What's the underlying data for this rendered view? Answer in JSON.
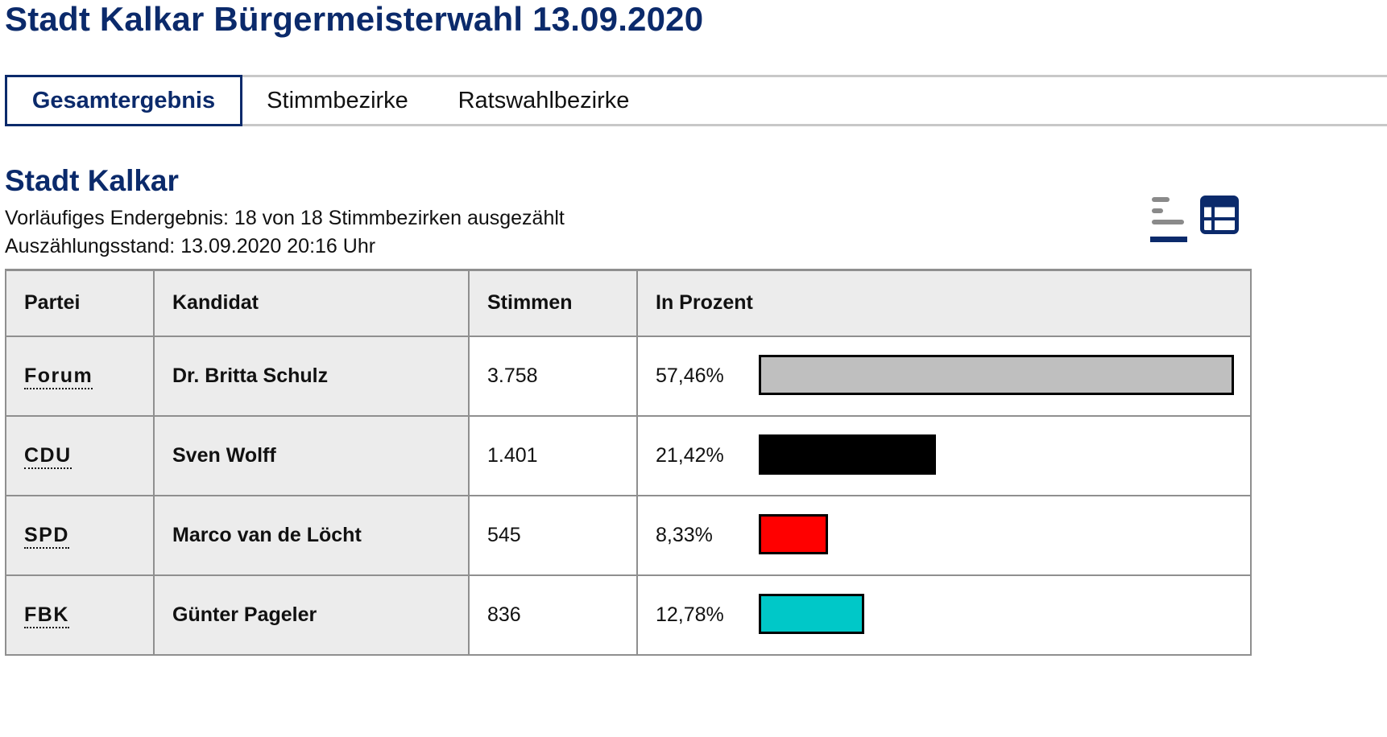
{
  "header": {
    "title": "Stadt Kalkar Bürgermeisterwahl 13.09.2020"
  },
  "tabs": [
    {
      "label": "Gesamtergebnis",
      "active": true
    },
    {
      "label": "Stimmbezirke",
      "active": false
    },
    {
      "label": "Ratswahlbezirke",
      "active": false
    }
  ],
  "section": {
    "title": "Stadt Kalkar",
    "status": "Vorläufiges Endergebnis: 18 von 18 Stimmbezirken ausgezählt",
    "timestamp": "Auszählungsstand: 13.09.2020 20:16 Uhr"
  },
  "view_toggle": {
    "chart_icon": "bar-chart-icon",
    "table_icon": "table-icon",
    "accent": "#0b2a6b"
  },
  "table": {
    "headers": {
      "party": "Partei",
      "candidate": "Kandidat",
      "votes": "Stimmen",
      "percent": "In Prozent"
    },
    "rows": [
      {
        "party": "Forum",
        "candidate": "Dr. Britta Schulz",
        "votes": "3.758",
        "percent_label": "57,46%",
        "percent": 57.46,
        "color": "#bfbfbf"
      },
      {
        "party": "CDU",
        "candidate": "Sven Wolff",
        "votes": "1.401",
        "percent_label": "21,42%",
        "percent": 21.42,
        "color": "#000000"
      },
      {
        "party": "SPD",
        "candidate": "Marco van de Löcht",
        "votes": "545",
        "percent_label": "8,33%",
        "percent": 8.33,
        "color": "#ff0000"
      },
      {
        "party": "FBK",
        "candidate": "Günter Pageler",
        "votes": "836",
        "percent_label": "12,78%",
        "percent": 12.78,
        "color": "#00c8c8"
      }
    ]
  },
  "colors": {
    "brand": "#0b2a6b",
    "header_bg": "#ececec",
    "border": "#8f8f8f"
  }
}
